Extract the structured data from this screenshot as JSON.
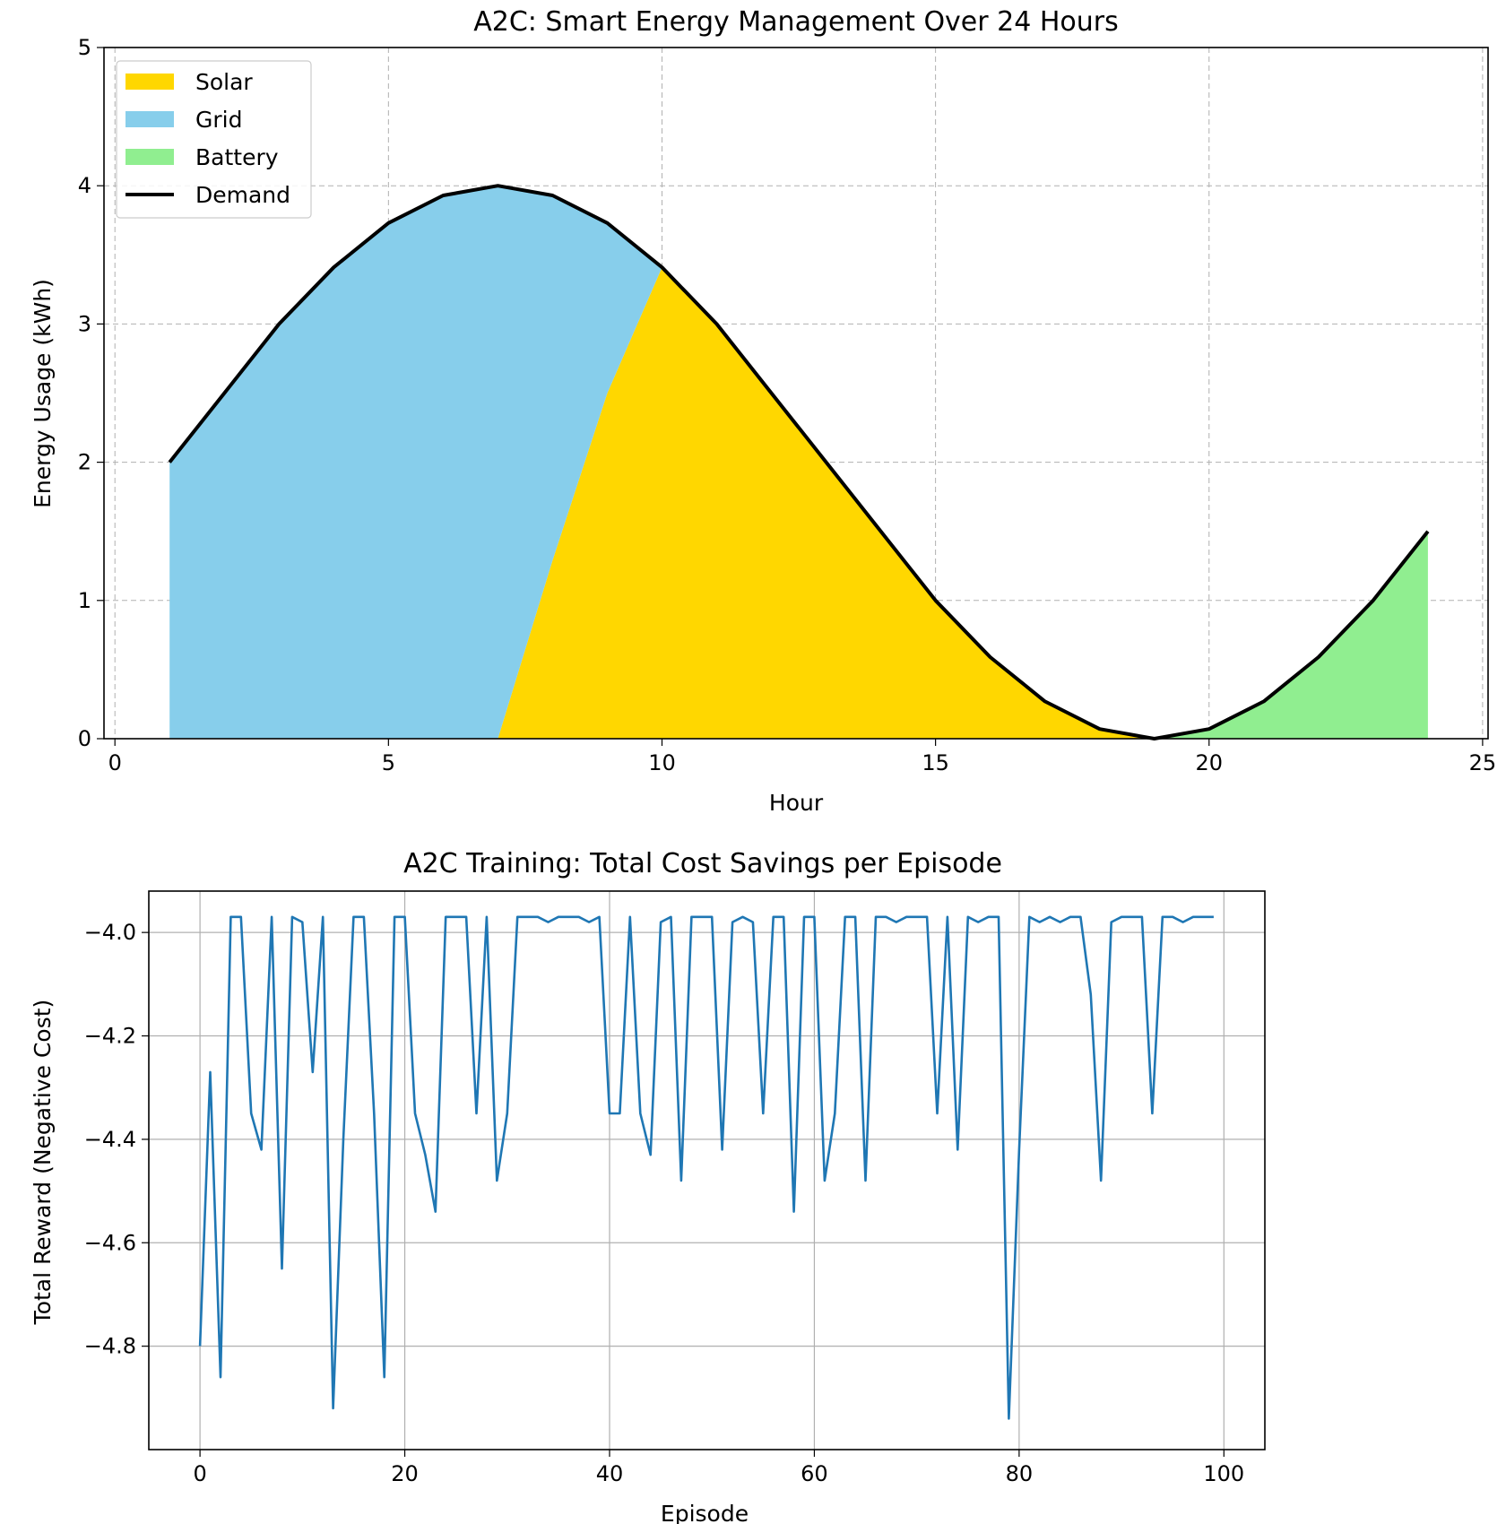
{
  "chart_data": [
    {
      "type": "area",
      "title": "A2C: Smart Energy Management Over 24 Hours",
      "xlabel": "Hour",
      "ylabel": "Energy Usage (kWh)",
      "xlim": [
        -0.2,
        25.1
      ],
      "ylim": [
        0,
        5
      ],
      "xticks": [
        0,
        5,
        10,
        15,
        20,
        25
      ],
      "yticks": [
        0,
        1,
        2,
        3,
        4,
        5
      ],
      "grid": "dashed",
      "legend_position": "top-left",
      "hours": [
        1,
        2,
        3,
        4,
        5,
        6,
        7,
        8,
        9,
        10,
        11,
        12,
        13,
        14,
        15,
        16,
        17,
        18,
        19,
        20,
        21,
        22,
        23,
        24
      ],
      "series": [
        {
          "name": "Solar",
          "color": "#FFD700",
          "values": [
            0,
            0,
            0,
            0,
            0,
            0,
            0,
            1.29,
            2.5,
            3.41,
            3.0,
            2.5,
            2.0,
            1.5,
            1.0,
            0.59,
            0.26,
            0.07,
            0,
            0,
            0,
            0,
            0,
            0
          ]
        },
        {
          "name": "Grid",
          "color": "#87CEEB",
          "values": [
            2.0,
            2.5,
            3.0,
            3.41,
            3.73,
            3.93,
            4.0,
            2.64,
            1.23,
            0,
            0,
            0,
            0,
            0,
            0,
            0,
            0,
            0,
            0,
            0,
            0,
            0,
            0,
            0
          ]
        },
        {
          "name": "Battery",
          "color": "#90EE90",
          "values": [
            0,
            0,
            0,
            0,
            0,
            0,
            0,
            0,
            0,
            0,
            0,
            0,
            0,
            0,
            0,
            0,
            0,
            0,
            0.0,
            0.07,
            0.27,
            0.59,
            1.0,
            1.5
          ]
        }
      ],
      "demand": {
        "name": "Demand",
        "color": "#000000",
        "values": [
          2.0,
          2.5,
          3.0,
          3.41,
          3.73,
          3.93,
          4.0,
          3.93,
          3.73,
          3.41,
          3.0,
          2.5,
          2.0,
          1.5,
          1.0,
          0.59,
          0.27,
          0.07,
          0.0,
          0.07,
          0.27,
          0.59,
          1.0,
          1.5
        ]
      }
    },
    {
      "type": "line",
      "title": "A2C Training: Total Cost Savings per Episode",
      "xlabel": "Episode",
      "ylabel": "Total Reward (Negative Cost)",
      "xlim": [
        -5,
        104
      ],
      "ylim": [
        -5.0,
        -3.92
      ],
      "xticks": [
        0,
        20,
        40,
        60,
        80,
        100
      ],
      "yticks": [
        -4.0,
        -4.2,
        -4.4,
        -4.6,
        -4.8
      ],
      "ytick_labels": [
        "−4.0",
        "−4.2",
        "−4.4",
        "−4.6",
        "−4.8"
      ],
      "grid": "solid",
      "series": [
        {
          "name": "Total Reward",
          "color": "#1f77b4",
          "x": [
            0,
            1,
            2,
            3,
            4,
            5,
            6,
            7,
            8,
            9,
            10,
            11,
            12,
            13,
            14,
            15,
            16,
            17,
            18,
            19,
            20,
            21,
            22,
            23,
            24,
            25,
            26,
            27,
            28,
            29,
            30,
            31,
            32,
            33,
            34,
            35,
            36,
            37,
            38,
            39,
            40,
            41,
            42,
            43,
            44,
            45,
            46,
            47,
            48,
            49,
            50,
            51,
            52,
            53,
            54,
            55,
            56,
            57,
            58,
            59,
            60,
            61,
            62,
            63,
            64,
            65,
            66,
            67,
            68,
            69,
            70,
            71,
            72,
            73,
            74,
            75,
            76,
            77,
            78,
            79,
            80,
            81,
            82,
            83,
            84,
            85,
            86,
            87,
            88,
            89,
            90,
            91,
            92,
            93,
            94,
            95,
            96,
            97,
            98,
            99
          ],
          "values": [
            -4.8,
            -4.27,
            -4.86,
            -3.97,
            -3.97,
            -4.35,
            -4.42,
            -3.97,
            -4.65,
            -3.97,
            -3.98,
            -4.27,
            -3.97,
            -4.92,
            -4.4,
            -3.97,
            -3.97,
            -4.35,
            -4.86,
            -3.97,
            -3.97,
            -4.35,
            -4.43,
            -4.54,
            -3.97,
            -3.97,
            -3.97,
            -4.35,
            -3.97,
            -4.48,
            -4.35,
            -3.97,
            -3.97,
            -3.97,
            -3.98,
            -3.97,
            -3.97,
            -3.97,
            -3.98,
            -3.97,
            -4.35,
            -4.35,
            -3.97,
            -4.35,
            -4.43,
            -3.98,
            -3.97,
            -4.48,
            -3.97,
            -3.97,
            -3.97,
            -4.42,
            -3.98,
            -3.97,
            -3.98,
            -4.35,
            -3.97,
            -3.97,
            -4.54,
            -3.97,
            -3.97,
            -4.48,
            -4.35,
            -3.97,
            -3.97,
            -4.48,
            -3.97,
            -3.97,
            -3.98,
            -3.97,
            -3.97,
            -3.97,
            -4.35,
            -3.97,
            -4.42,
            -3.97,
            -3.98,
            -3.97,
            -3.97,
            -4.94,
            -4.42,
            -3.97,
            -3.98,
            -3.97,
            -3.98,
            -3.97,
            -3.97,
            -4.12,
            -4.48,
            -3.98,
            -3.97,
            -3.97,
            -3.97,
            -4.35,
            -3.97,
            -3.97,
            -3.98,
            -3.97,
            -3.97,
            -3.97
          ]
        }
      ]
    }
  ]
}
